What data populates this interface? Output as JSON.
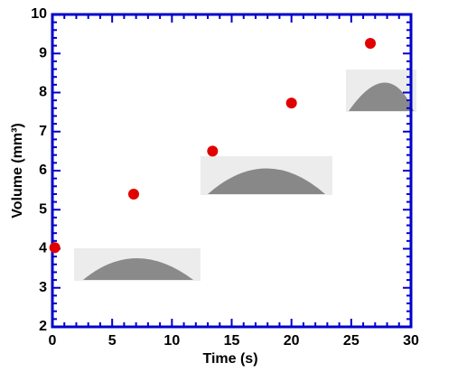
{
  "chart_data": {
    "type": "scatter",
    "x_label": "Time (s)",
    "y_label": "Volume (mm³)",
    "x": [
      0.2,
      6.8,
      13.4,
      20.0,
      26.6
    ],
    "values": [
      4.03,
      5.4,
      6.5,
      7.73,
      9.26
    ],
    "color": "#e00000",
    "frame_color": "#0000cc",
    "xlim": [
      0,
      30
    ],
    "xticks": [
      0,
      5,
      10,
      15,
      20,
      25,
      30
    ],
    "ylim": [
      2,
      10
    ],
    "yticks": [
      2,
      3,
      4,
      5,
      6,
      7,
      8,
      9,
      10
    ]
  }
}
